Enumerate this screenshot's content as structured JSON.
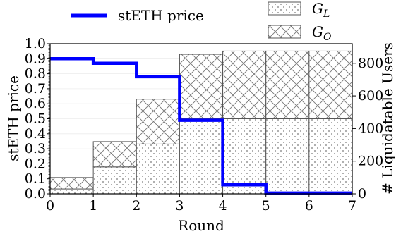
{
  "chart_data": {
    "type": "bar",
    "x": [
      0,
      1,
      2,
      3,
      4,
      5,
      6
    ],
    "xlabel": "Round",
    "ylabel_left": "stETH price",
    "ylabel_right": "# Liquidatable Users",
    "xlim": [
      0,
      7
    ],
    "ylim_left": [
      0,
      1.0
    ],
    "ylim_right": [
      0,
      920
    ],
    "x_ticks": [
      "0",
      "1",
      "2",
      "3",
      "4",
      "5",
      "6",
      "7"
    ],
    "y_left_ticks": [
      "0.0",
      "0.1",
      "0.2",
      "0.3",
      "0.4",
      "0.5",
      "0.6",
      "0.7",
      "0.8",
      "0.9",
      "1.0"
    ],
    "y_right_ticks": [
      "0",
      "200",
      "400",
      "600",
      "800"
    ],
    "legend_position": "top",
    "line_series": {
      "name": "stETH price",
      "color": "#0000ff",
      "steps": [
        {
          "x0": 0,
          "x1": 1,
          "y": 0.9
        },
        {
          "x0": 1,
          "x1": 2,
          "y": 0.87
        },
        {
          "x0": 2,
          "x1": 3,
          "y": 0.78
        },
        {
          "x0": 3,
          "x1": 4,
          "y": 0.49
        },
        {
          "x0": 4,
          "x1": 5,
          "y": 0.06
        },
        {
          "x0": 5,
          "x1": 7,
          "y": 0.005
        }
      ]
    },
    "bar_series": [
      {
        "name": "G",
        "subscript": "L",
        "pattern": "dots",
        "values": [
          30,
          165,
          305,
          460,
          460,
          460,
          460
        ]
      },
      {
        "name": "G",
        "subscript": "O",
        "pattern": "crosshatch",
        "values": [
          70,
          155,
          275,
          395,
          415,
          415,
          415
        ]
      }
    ],
    "grid": true
  }
}
